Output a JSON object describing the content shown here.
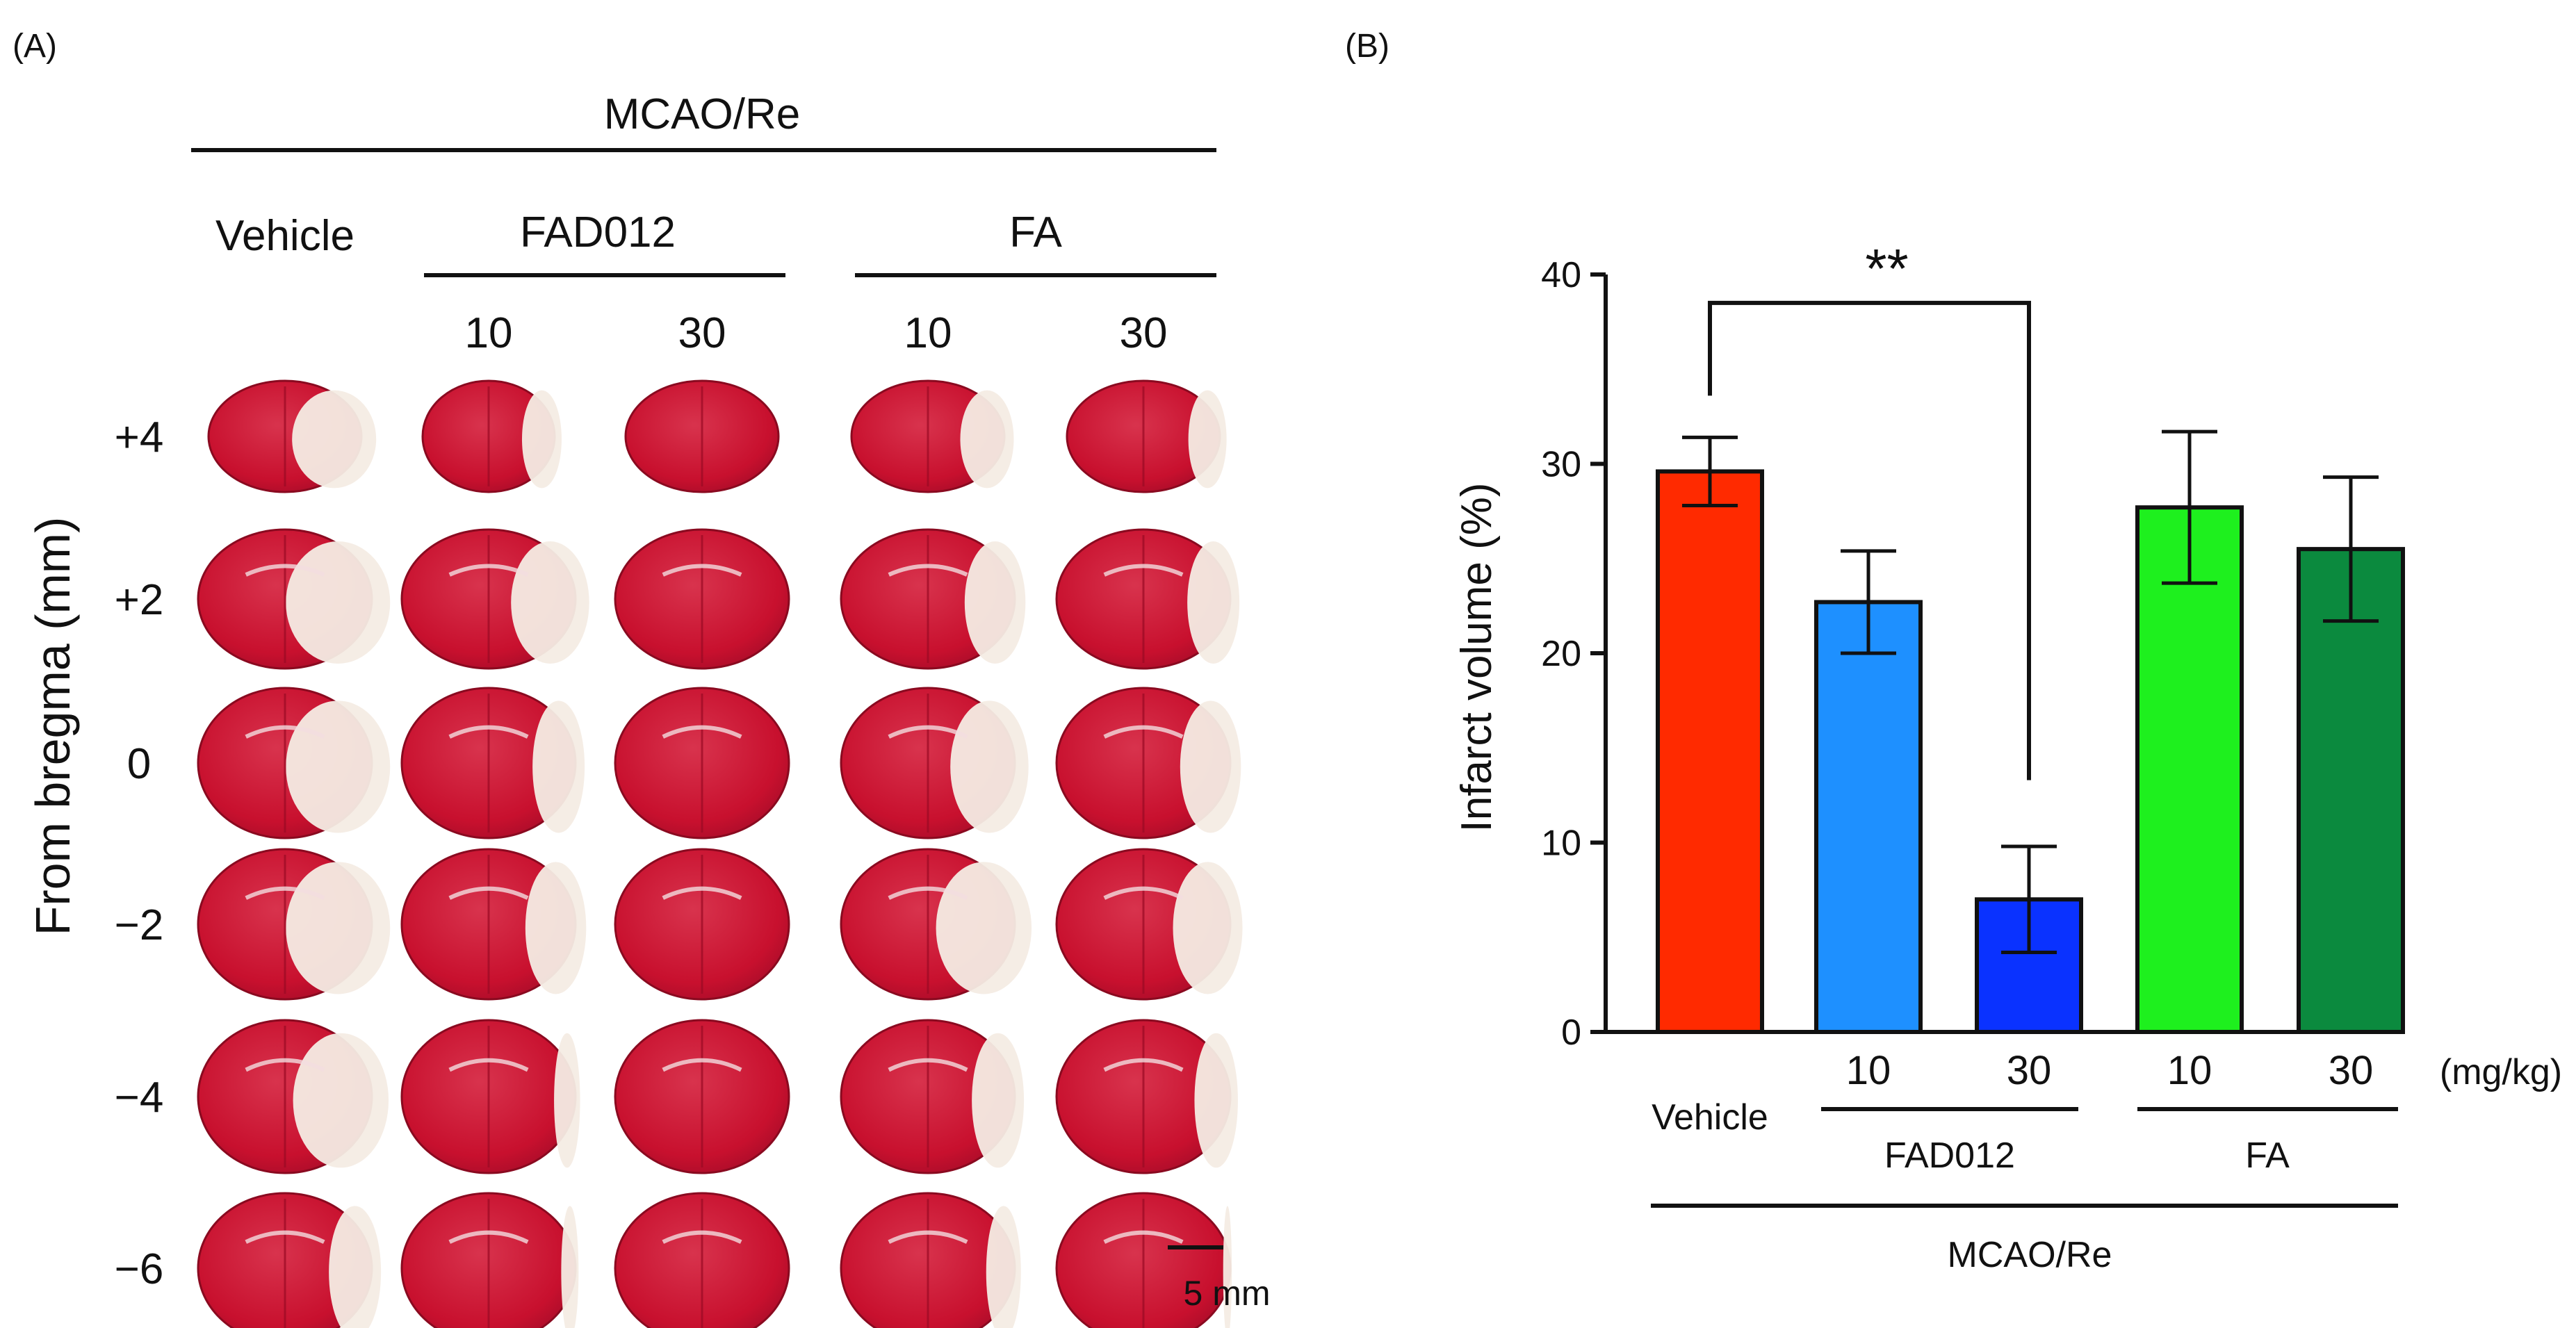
{
  "panel_a": {
    "label": "(A)",
    "group_label": "MCAO/Re",
    "columns": [
      {
        "group": "Vehicle",
        "dose": ""
      },
      {
        "group": "FAD012",
        "dose": "10"
      },
      {
        "group": "FAD012",
        "dose": "30"
      },
      {
        "group": "FA",
        "dose": "10"
      },
      {
        "group": "FA",
        "dose": "30"
      }
    ],
    "headers": {
      "vehicle": "Vehicle",
      "fad012": "FAD012",
      "fa": "FA"
    },
    "doses": [
      "10",
      "30",
      "10",
      "30"
    ],
    "y_axis_label": "From bregma (mm)",
    "rows": [
      "+4",
      "+2",
      "0",
      "−2",
      "−4",
      "−6"
    ],
    "scale_bar": "5 mm",
    "colors": {
      "stain": "#c8102e",
      "stain_dark": "#9a0a24",
      "infarct": "#f4ece4"
    }
  },
  "panel_b": {
    "label": "(B)",
    "significance": "**",
    "unit_label": "(mg/kg)",
    "group_label": "MCAO/Re",
    "x_groups": {
      "vehicle": "Vehicle",
      "fad012": "FAD012",
      "fa": "FA"
    },
    "doses": [
      "10",
      "30",
      "10",
      "30"
    ]
  },
  "chart_data": {
    "type": "bar",
    "title": "",
    "xlabel": "",
    "ylabel": "Infarct volume (%)",
    "ylim": [
      0,
      40
    ],
    "yticks": [
      0,
      10,
      20,
      30,
      40
    ],
    "categories": [
      "Vehicle",
      "FAD012 10",
      "FAD012 30",
      "FA 10",
      "FA 30"
    ],
    "values": [
      29.6,
      22.7,
      7.0,
      27.7,
      25.5
    ],
    "errors": [
      1.8,
      2.7,
      2.8,
      4.0,
      3.8
    ],
    "colors": [
      "#ff2a00",
      "#1e90ff",
      "#0a32ff",
      "#1ef01e",
      "#0b8a3e"
    ],
    "annotations": [
      {
        "text": "**",
        "between": [
          "Vehicle",
          "FAD012 30"
        ]
      }
    ]
  }
}
